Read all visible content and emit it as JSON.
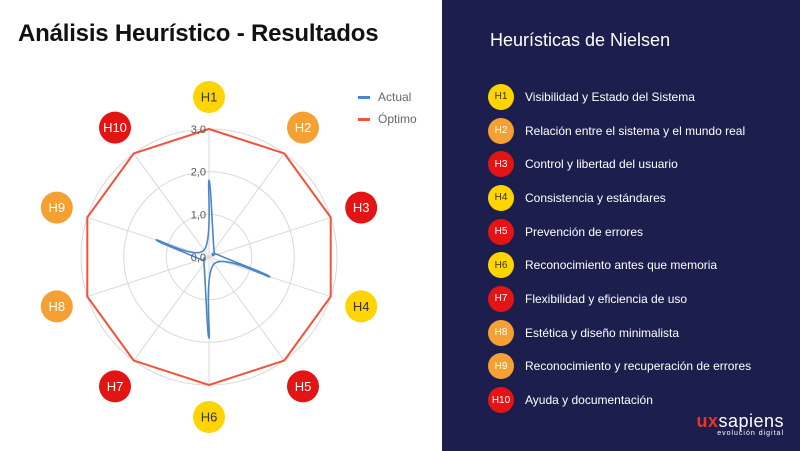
{
  "title": "Análisis Heurístico - Resultados",
  "colors": {
    "yellow": "#ffd400",
    "orange": "#f5a033",
    "red": "#e21414",
    "actual": "#4a86c8",
    "optimo": "#f0553a",
    "panel": "#1c1f4e"
  },
  "chart_data": {
    "type": "radar",
    "title": "",
    "categories": [
      "H1",
      "H2",
      "H3",
      "H4",
      "H5",
      "H6",
      "H7",
      "H8",
      "H9",
      "H10"
    ],
    "category_colors": [
      "yellow",
      "orange",
      "red",
      "yellow",
      "red",
      "yellow",
      "red",
      "orange",
      "orange",
      "red"
    ],
    "tick_labels": [
      "0,0",
      "1,0",
      "2,0",
      "3,0"
    ],
    "rlim": [
      0,
      3
    ],
    "grid": true,
    "legend_position": "top-right",
    "series": [
      {
        "name": "Actual",
        "color": "#4a86c8",
        "values": [
          1.8,
          0.2,
          0.2,
          1.5,
          0.2,
          1.9,
          0.2,
          0.2,
          1.3,
          0.2
        ]
      },
      {
        "name": "Óptimo",
        "color": "#f0553a",
        "values": [
          3,
          3,
          3,
          3,
          3,
          3,
          3,
          3,
          3,
          3
        ]
      }
    ]
  },
  "panel": {
    "title": "Heurísticas de Nielsen",
    "items": [
      {
        "code": "H1",
        "label": "Visibilidad y Estado del Sistema",
        "color": "yellow"
      },
      {
        "code": "H2",
        "label": "Relación entre el sistema y el mundo real",
        "color": "orange"
      },
      {
        "code": "H3",
        "label": "Control y libertad del usuario",
        "color": "red"
      },
      {
        "code": "H4",
        "label": "Consistencia y estándares",
        "color": "yellow"
      },
      {
        "code": "H5",
        "label": "Prevención de errores",
        "color": "red"
      },
      {
        "code": "H6",
        "label": "Reconocimiento antes que memoria",
        "color": "yellow"
      },
      {
        "code": "H7",
        "label": "Flexibilidad y eficiencia de uso",
        "color": "red"
      },
      {
        "code": "H8",
        "label": "Estética y diseño minimalista",
        "color": "orange"
      },
      {
        "code": "H9",
        "label": "Reconocimiento y recuperación de errores",
        "color": "orange"
      },
      {
        "code": "H10",
        "label": "Ayuda y documentación",
        "color": "red"
      }
    ]
  },
  "logo": {
    "ux": "ux",
    "rest": "sapiens",
    "tagline": "evolución digital"
  }
}
